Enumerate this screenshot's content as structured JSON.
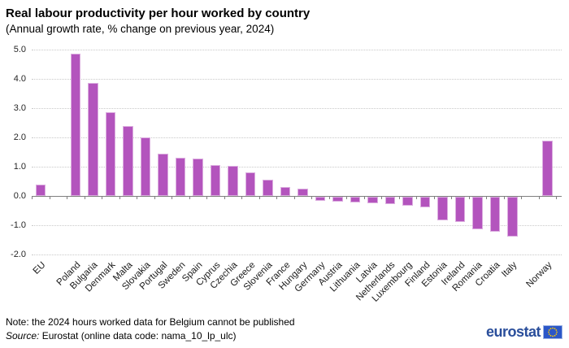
{
  "chart_data": {
    "type": "bar",
    "title": "Real labour productivity per hour worked by country",
    "subtitle": "(Annual growth rate, % change on previous year, 2024)",
    "categories": [
      "EU",
      "Poland",
      "Bulgaria",
      "Denmark",
      "Malta",
      "Slovakia",
      "Portugal",
      "Sweden",
      "Spain",
      "Cyprus",
      "Czechia",
      "Greece",
      "Slovenia",
      "France",
      "Hungary",
      "Germany",
      "Austria",
      "Lithuania",
      "Latvia",
      "Netherlands",
      "Luxembourg",
      "Finland",
      "Estonia",
      "Ireland",
      "Romania",
      "Croatia",
      "Italy",
      "Norway"
    ],
    "values": [
      0.4,
      4.85,
      3.85,
      2.85,
      2.4,
      2.0,
      1.45,
      1.3,
      1.28,
      1.05,
      1.03,
      0.8,
      0.55,
      0.3,
      0.25,
      -0.15,
      -0.18,
      -0.19,
      -0.21,
      -0.25,
      -0.3,
      -0.35,
      -0.8,
      -0.85,
      -1.1,
      -1.2,
      -1.35,
      1.9
    ],
    "separators_after_index": [
      0,
      26
    ],
    "xlabel": "",
    "ylabel": "",
    "ylim": [
      -2.0,
      5.0
    ],
    "yticks": [
      5.0,
      4.0,
      3.0,
      2.0,
      1.0,
      0.0,
      -1.0,
      -2.0
    ],
    "ytick_labels": [
      "5.0",
      "4.0",
      "3.0",
      "2.0",
      "1.0",
      "0.0",
      "-1.0",
      "-2.0"
    ],
    "grid": "dotted horizontal",
    "legend": "none",
    "colors": {
      "bar_fill": "#b354bd",
      "bar_border": "#dcaee0",
      "axis_line": "#7f7f7f",
      "gridline": "#c9c9c9",
      "tick": "#7f7f7f"
    }
  },
  "footer": {
    "note": "Note: the 2024 hours worked data for Belgium cannot be published",
    "source_prefix": "Source:",
    "source_rest": " Eurostat (online data code: nama_10_lp_ulc)",
    "logo_text": "eurostat",
    "logo_color": "#2a4e9b",
    "flag_blue": "#2b57c8",
    "star_yellow": "#ffcc00"
  }
}
